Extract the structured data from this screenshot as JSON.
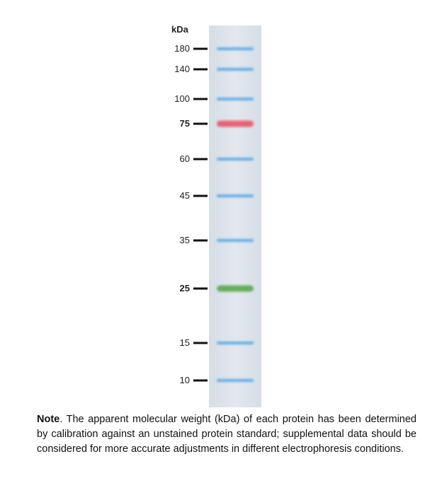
{
  "unit_label": "kDa",
  "lane_color": "#dfe5ec",
  "band_colors": {
    "blue": "#4aa3e6",
    "red": "#e8556a",
    "green": "#5aa84e"
  },
  "markers": [
    {
      "label": "180",
      "kda": 180,
      "color": "blue",
      "bold": false
    },
    {
      "label": "140",
      "kda": 140,
      "color": "blue",
      "bold": false
    },
    {
      "label": "100",
      "kda": 100,
      "color": "blue",
      "bold": false
    },
    {
      "label": "75",
      "kda": 75,
      "color": "red",
      "bold": true
    },
    {
      "label": "60",
      "kda": 60,
      "color": "blue",
      "bold": false
    },
    {
      "label": "45",
      "kda": 45,
      "color": "blue",
      "bold": false
    },
    {
      "label": "35",
      "kda": 35,
      "color": "blue",
      "bold": false
    },
    {
      "label": "25",
      "kda": 25,
      "color": "green",
      "bold": true
    },
    {
      "label": "15",
      "kda": 15,
      "color": "blue",
      "bold": false
    },
    {
      "label": "10",
      "kda": 10,
      "color": "blue",
      "bold": false
    }
  ],
  "note": {
    "lead": "Note",
    "text": ". The apparent molecular weight (kDa) of each protein has been determined by calibration against an unstained protein standard; supplemental data should be considered for more accurate adjustments in different electrophoresis conditions."
  }
}
